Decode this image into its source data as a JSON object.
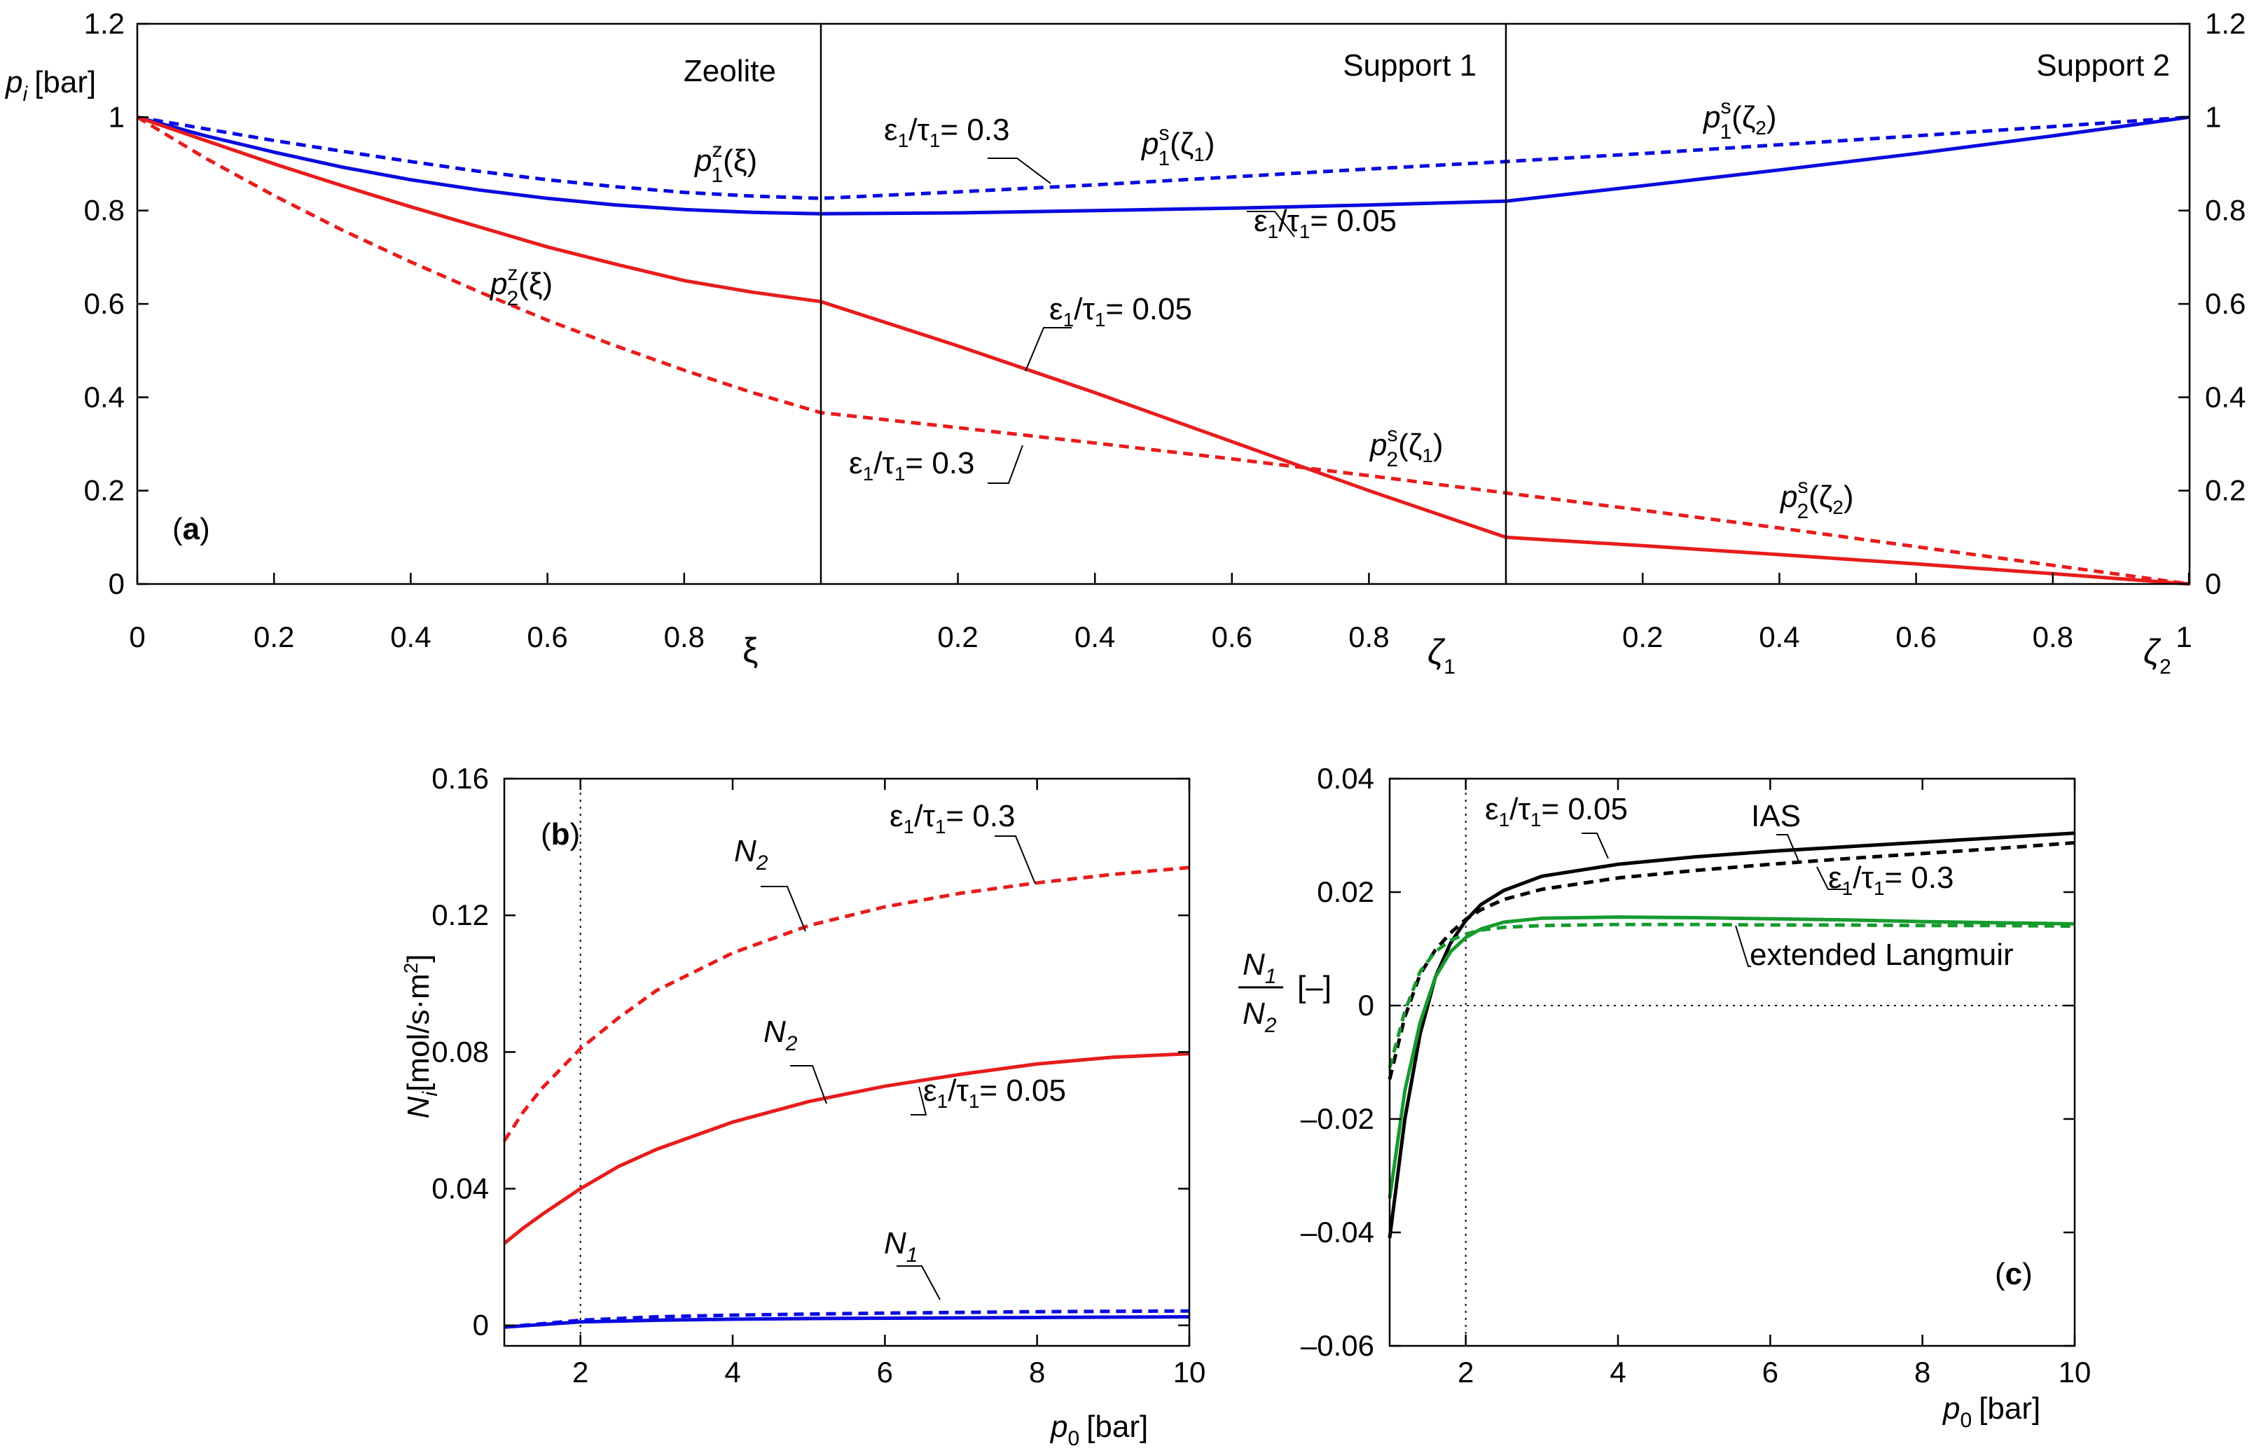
{
  "colors": {
    "blue": "#0a0ae0",
    "red": "#e81c1c",
    "black": "#000000",
    "green": "#169a2e"
  },
  "chart_data": [
    {
      "id": "a",
      "type": "line",
      "panel_label": "a",
      "ylabel_var": "p",
      "ylabel_sub": "i",
      "ylabel_unit": "[bar]",
      "ylim": [
        0,
        1.2
      ],
      "yticks": [
        "0",
        "0.2",
        "0.4",
        "0.6",
        "0.8",
        "1",
        "1.2"
      ],
      "xlabel_var": "ξ",
      "xlabel_zeta1": "ζ",
      "xlabel_zeta1_sub": "1",
      "xlabel_zeta2": "ζ",
      "xlabel_zeta2_sub": "2",
      "x_ticks_zeolite": [
        "0",
        "0.2",
        "0.4",
        "0.6",
        "0.8"
      ],
      "x_ticks_support": [
        "0.2",
        "0.4",
        "0.6",
        "0.8"
      ],
      "x_tick_end": "1",
      "region_titles": [
        "Zeolite",
        "Support 1",
        "Support 2"
      ],
      "segments": [
        "zeolite",
        "support1",
        "support2"
      ],
      "series": [
        {
          "name": "p1 eps/tau=0.05",
          "color": "blue",
          "dash": false,
          "values": [
            [
              0,
              1.0
            ],
            [
              0.1,
              0.96
            ],
            [
              0.2,
              0.925
            ],
            [
              0.3,
              0.893
            ],
            [
              0.4,
              0.866
            ],
            [
              0.5,
              0.844
            ],
            [
              0.6,
              0.826
            ],
            [
              0.7,
              0.812
            ],
            [
              0.8,
              0.802
            ],
            [
              0.9,
              0.796
            ],
            [
              1.0,
              0.793
            ],
            [
              1.2,
              0.795
            ],
            [
              1.4,
              0.8
            ],
            [
              1.6,
              0.805
            ],
            [
              1.8,
              0.812
            ],
            [
              2.0,
              0.82
            ],
            [
              2.2,
              0.853
            ],
            [
              2.4,
              0.887
            ],
            [
              2.6,
              0.922
            ],
            [
              2.8,
              0.96
            ],
            [
              3.0,
              1.0
            ]
          ]
        },
        {
          "name": "p1 eps/tau=0.3",
          "color": "blue",
          "dash": true,
          "values": [
            [
              0,
              1.0
            ],
            [
              0.1,
              0.975
            ],
            [
              0.2,
              0.95
            ],
            [
              0.3,
              0.927
            ],
            [
              0.4,
              0.905
            ],
            [
              0.5,
              0.884
            ],
            [
              0.6,
              0.866
            ],
            [
              0.7,
              0.851
            ],
            [
              0.8,
              0.839
            ],
            [
              0.9,
              0.831
            ],
            [
              1.0,
              0.826
            ],
            [
              1.2,
              0.84
            ],
            [
              1.4,
              0.855
            ],
            [
              1.6,
              0.872
            ],
            [
              1.8,
              0.889
            ],
            [
              2.0,
              0.905
            ],
            [
              2.2,
              0.922
            ],
            [
              2.4,
              0.941
            ],
            [
              2.6,
              0.96
            ],
            [
              2.8,
              0.98
            ],
            [
              3.0,
              1.0
            ]
          ]
        },
        {
          "name": "p2 eps/tau=0.05",
          "color": "red",
          "dash": false,
          "values": [
            [
              0,
              1.0
            ],
            [
              0.1,
              0.95
            ],
            [
              0.2,
              0.9
            ],
            [
              0.3,
              0.853
            ],
            [
              0.4,
              0.808
            ],
            [
              0.5,
              0.765
            ],
            [
              0.6,
              0.722
            ],
            [
              0.7,
              0.685
            ],
            [
              0.8,
              0.65
            ],
            [
              0.9,
              0.625
            ],
            [
              1.0,
              0.605
            ],
            [
              1.2,
              0.51
            ],
            [
              1.4,
              0.41
            ],
            [
              1.6,
              0.305
            ],
            [
              1.8,
              0.2
            ],
            [
              2.0,
              0.1
            ],
            [
              2.2,
              0.082
            ],
            [
              2.4,
              0.063
            ],
            [
              2.6,
              0.043
            ],
            [
              2.8,
              0.022
            ],
            [
              3.0,
              0.0
            ]
          ]
        },
        {
          "name": "p2 eps/tau=0.3",
          "color": "red",
          "dash": true,
          "values": [
            [
              0,
              1.0
            ],
            [
              0.1,
              0.912
            ],
            [
              0.2,
              0.832
            ],
            [
              0.3,
              0.758
            ],
            [
              0.4,
              0.69
            ],
            [
              0.5,
              0.626
            ],
            [
              0.6,
              0.565
            ],
            [
              0.7,
              0.51
            ],
            [
              0.8,
              0.458
            ],
            [
              0.9,
              0.41
            ],
            [
              1.0,
              0.367
            ],
            [
              1.2,
              0.335
            ],
            [
              1.4,
              0.302
            ],
            [
              1.6,
              0.268
            ],
            [
              1.8,
              0.232
            ],
            [
              2.0,
              0.195
            ],
            [
              2.2,
              0.158
            ],
            [
              2.4,
              0.12
            ],
            [
              2.6,
              0.08
            ],
            [
              2.8,
              0.04
            ],
            [
              3.0,
              0.0
            ]
          ]
        }
      ],
      "annotations": {
        "p1z": {
          "var": "p",
          "sup": "z",
          "sub": "1",
          "arg": "(ξ)"
        },
        "p2z": {
          "var": "p",
          "sup": "z",
          "sub": "2",
          "arg": "(ξ)"
        },
        "p1s1": {
          "var": "p",
          "sup": "s",
          "sub": "1",
          "arg_pre": "(ζ",
          "arg_sub": "1",
          "arg_post": ")"
        },
        "p2s1": {
          "var": "p",
          "sup": "s",
          "sub": "2",
          "arg_pre": "(ζ",
          "arg_sub": "1",
          "arg_post": ")"
        },
        "p1s2": {
          "var": "p",
          "sup": "s",
          "sub": "1",
          "arg_pre": "(ζ",
          "arg_sub": "2",
          "arg_post": ")"
        },
        "p2s2": {
          "var": "p",
          "sup": "s",
          "sub": "2",
          "arg_pre": "(ζ",
          "arg_sub": "2",
          "arg_post": ")"
        },
        "eps03_top": {
          "eps": "ε",
          "tau": "τ",
          "sub": "1",
          "value": "= 0.3"
        },
        "eps005_blue": {
          "eps": "ε",
          "tau": "τ",
          "sub": "1",
          "value": "= 0.05"
        },
        "eps005_red": {
          "eps": "ε",
          "tau": "τ",
          "sub": "1",
          "value": "= 0.05"
        },
        "eps03_red": {
          "eps": "ε",
          "tau": "τ",
          "sub": "1",
          "value": "= 0.3"
        }
      }
    },
    {
      "id": "b",
      "type": "line",
      "panel_label": "b",
      "ylabel_var": "N",
      "ylabel_sub": "i",
      "ylabel_unit": "[mol/s·m",
      "ylabel_unit_sup": "2",
      "ylabel_close": "]",
      "xlabel_var": "p",
      "xlabel_sub": "0",
      "xlabel_unit": "[bar]",
      "xlim": [
        1,
        10
      ],
      "ylim": [
        -0.006,
        0.16
      ],
      "xticks": [
        "2",
        "4",
        "6",
        "8",
        "10"
      ],
      "yticks": [
        "0",
        "0.04",
        "0.08",
        "0.12",
        "0.16"
      ],
      "ref_x": 2,
      "series": [
        {
          "name": "N2 eps/tau=0.3",
          "color": "red",
          "dash": true,
          "x": [
            1,
            1.25,
            1.5,
            2,
            2.5,
            3,
            4,
            5,
            6,
            7,
            8,
            9,
            10
          ],
          "y": [
            0.054,
            0.0625,
            0.0695,
            0.081,
            0.09,
            0.098,
            0.109,
            0.117,
            0.1225,
            0.1265,
            0.1295,
            0.132,
            0.134
          ]
        },
        {
          "name": "N2 eps/tau=0.05",
          "color": "red",
          "dash": false,
          "x": [
            1,
            1.25,
            1.5,
            2,
            2.5,
            3,
            4,
            5,
            6,
            7,
            8,
            9,
            10
          ],
          "y": [
            0.024,
            0.0285,
            0.0325,
            0.04,
            0.0465,
            0.0515,
            0.0595,
            0.0655,
            0.07,
            0.0735,
            0.0765,
            0.0785,
            0.0795
          ]
        },
        {
          "name": "N1 eps/tau=0.3",
          "color": "blue",
          "dash": true,
          "x": [
            1,
            2,
            3,
            4,
            5,
            6,
            7,
            8,
            9,
            10
          ],
          "y": [
            -0.0005,
            0.0015,
            0.0025,
            0.003,
            0.0033,
            0.0036,
            0.0038,
            0.004,
            0.0041,
            0.0042
          ]
        },
        {
          "name": "N1 eps/tau=0.05",
          "color": "blue",
          "dash": false,
          "x": [
            1,
            2,
            3,
            4,
            5,
            6,
            7,
            8,
            9,
            10
          ],
          "y": [
            -0.0005,
            0.001,
            0.0015,
            0.0018,
            0.002,
            0.0021,
            0.0022,
            0.0023,
            0.0024,
            0.0025
          ]
        }
      ],
      "annotations": {
        "N2_top": {
          "var": "N",
          "sub": "2"
        },
        "N2_mid": {
          "var": "N",
          "sub": "2"
        },
        "N1": {
          "var": "N",
          "sub": "1"
        },
        "eps03": {
          "eps": "ε",
          "tau": "τ",
          "sub": "1",
          "value": "= 0.3"
        },
        "eps005": {
          "eps": "ε",
          "tau": "τ",
          "sub": "1",
          "value": "= 0.05"
        }
      }
    },
    {
      "id": "c",
      "type": "line",
      "panel_label": "c",
      "ylabel_num_var": "N",
      "ylabel_num_sub": "1",
      "ylabel_den_var": "N",
      "ylabel_den_sub": "2",
      "ylabel_unit": "[–]",
      "xlabel_var": "p",
      "xlabel_sub": "0",
      "xlabel_unit": "[bar]",
      "xlim": [
        1,
        10
      ],
      "ylim": [
        -0.06,
        0.04
      ],
      "xticks": [
        "2",
        "4",
        "6",
        "8",
        "10"
      ],
      "yticks": [
        "0.04",
        "0.02",
        "0",
        "–0.02",
        "–0.04",
        "–0.06"
      ],
      "ref_x": 2,
      "ref_y": 0,
      "series": [
        {
          "name": "IAS eps/tau=0.05",
          "color": "black",
          "dash": false,
          "x": [
            1,
            1.2,
            1.4,
            1.6,
            1.8,
            2,
            2.2,
            2.5,
            3,
            4,
            5,
            6,
            7,
            8,
            9,
            10
          ],
          "y": [
            -0.041,
            -0.02,
            -0.005,
            0.005,
            0.011,
            0.015,
            0.0178,
            0.0203,
            0.0228,
            0.0249,
            0.0262,
            0.0272,
            0.028,
            0.0288,
            0.0296,
            0.0304
          ]
        },
        {
          "name": "IAS eps/tau=0.3",
          "color": "black",
          "dash": true,
          "x": [
            1,
            1.2,
            1.4,
            1.6,
            1.8,
            2,
            2.2,
            2.5,
            3,
            4,
            5,
            6,
            7,
            8,
            9,
            10
          ],
          "y": [
            -0.013,
            -0.002,
            0.0055,
            0.0098,
            0.0128,
            0.0152,
            0.0169,
            0.0187,
            0.0205,
            0.0225,
            0.0238,
            0.0249,
            0.0259,
            0.0268,
            0.0277,
            0.0287
          ]
        },
        {
          "name": "extended Langmuir eps/tau=0.05",
          "color": "green",
          "dash": false,
          "x": [
            1,
            1.2,
            1.4,
            1.6,
            1.8,
            2,
            2.2,
            2.5,
            3,
            4,
            5,
            6,
            7,
            8,
            9,
            10
          ],
          "y": [
            -0.034,
            -0.015,
            -0.003,
            0.005,
            0.0095,
            0.012,
            0.0135,
            0.0147,
            0.0154,
            0.0156,
            0.0155,
            0.0153,
            0.0151,
            0.0148,
            0.0146,
            0.0144
          ]
        },
        {
          "name": "extended Langmuir eps/tau=0.3",
          "color": "green",
          "dash": true,
          "x": [
            1,
            1.2,
            1.4,
            1.6,
            1.8,
            2,
            2.2,
            2.5,
            3,
            4,
            5,
            6,
            7,
            8,
            9,
            10
          ],
          "y": [
            -0.011,
            -0.001,
            0.006,
            0.0095,
            0.0115,
            0.0126,
            0.0133,
            0.0138,
            0.0141,
            0.0143,
            0.0143,
            0.0142,
            0.0142,
            0.0141,
            0.0141,
            0.014
          ]
        }
      ],
      "annotations": {
        "eps005": {
          "eps": "ε",
          "tau": "τ",
          "sub": "1",
          "value": "= 0.05"
        },
        "eps03": {
          "eps": "ε",
          "tau": "τ",
          "sub": "1",
          "value": "= 0.3"
        },
        "ias": "IAS",
        "langmuir": "extended Langmuir"
      }
    }
  ]
}
